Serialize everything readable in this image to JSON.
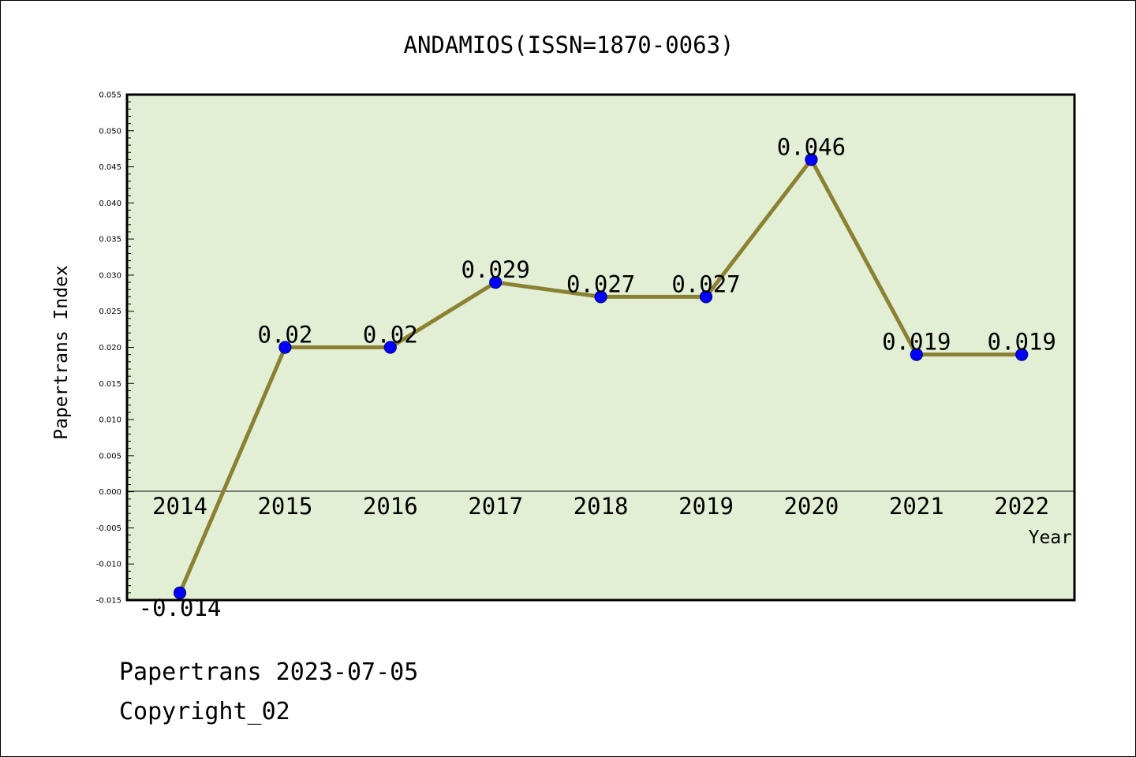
{
  "chart_data": {
    "type": "line",
    "title": "ANDAMIOS(ISSN=1870-0063)",
    "xlabel": "Year",
    "ylabel": "Papertrans Index",
    "categories": [
      "2014",
      "2015",
      "2016",
      "2017",
      "2018",
      "2019",
      "2020",
      "2021",
      "2022"
    ],
    "values": [
      -0.014,
      0.02,
      0.02,
      0.029,
      0.027,
      0.027,
      0.046,
      0.019,
      0.019
    ],
    "data_labels": [
      "-0.014",
      "0.02",
      "0.02",
      "0.029",
      "0.027",
      "0.027",
      "0.046",
      "0.019",
      "0.019"
    ],
    "ylim": [
      -0.015,
      0.055
    ],
    "yticks": [
      "-0.015",
      "-0.010",
      "-0.005",
      "0.000",
      "0.005",
      "0.010",
      "0.015",
      "0.020",
      "0.025",
      "0.030",
      "0.035",
      "0.040",
      "0.045",
      "0.050",
      "0.055"
    ],
    "grid": false,
    "legend": "none",
    "colors": {
      "plot_background": "#e2efd5",
      "line": "#8b8133",
      "marker": "#0000ff",
      "marker_edge": "#000080"
    }
  },
  "footer": {
    "source": "Papertrans 2023-07-05",
    "copyright": "Copyright_02"
  }
}
